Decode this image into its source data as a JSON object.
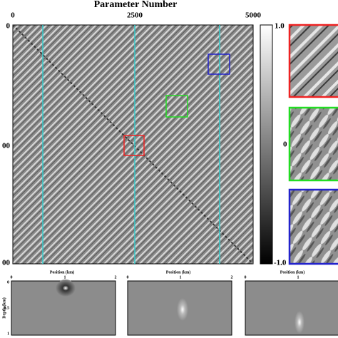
{
  "header": {
    "title": "Parameter Number"
  },
  "matrix": {
    "top_ticks": [
      "0",
      "2500",
      "5000"
    ],
    "left_ticks": [
      "0",
      "00",
      "00"
    ]
  },
  "colorbar": {
    "ticks": [
      "1.0",
      "0",
      "-1.0"
    ]
  },
  "panels": [
    {
      "x_label": "Position (km)",
      "x_ticks": [
        "0",
        "1",
        "2"
      ],
      "y_label": "Depth (km)",
      "y_ticks": [
        "0",
        "0.5",
        "1"
      ]
    },
    {
      "x_label": "Position (km)",
      "x_ticks": [
        "0",
        "1",
        "2"
      ]
    },
    {
      "x_label": "Position (km)",
      "x_ticks": [
        "0",
        "1"
      ]
    }
  ]
}
